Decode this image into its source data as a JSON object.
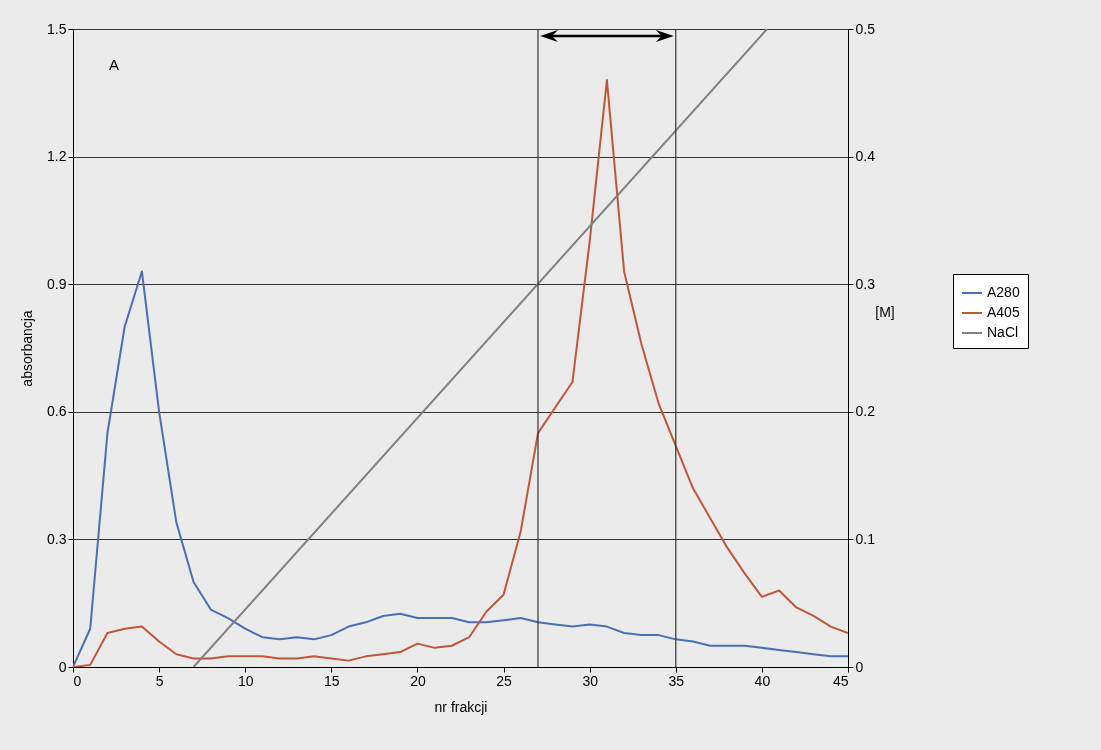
{
  "chart_data": {
    "type": "line",
    "xlabel": "nr frakcji",
    "ylabel": "absorbancja",
    "y2label": "[M]",
    "x": [
      0,
      1,
      2,
      3,
      4,
      5,
      6,
      7,
      8,
      9,
      10,
      11,
      12,
      13,
      14,
      15,
      16,
      17,
      18,
      19,
      20,
      21,
      22,
      23,
      24,
      25,
      26,
      27,
      28,
      29,
      30,
      31,
      32,
      33,
      34,
      35,
      36,
      37,
      38,
      39,
      40,
      41,
      42,
      43,
      44,
      45
    ],
    "series": [
      {
        "name": "A280",
        "color": "#4a6fb5",
        "values": [
          0.0,
          0.09,
          0.55,
          0.8,
          0.93,
          0.6,
          0.34,
          0.2,
          0.135,
          0.115,
          0.09,
          0.07,
          0.065,
          0.07,
          0.065,
          0.075,
          0.095,
          0.105,
          0.12,
          0.125,
          0.115,
          0.115,
          0.115,
          0.105,
          0.105,
          0.11,
          0.115,
          0.105,
          0.1,
          0.095,
          0.1,
          0.095,
          0.08,
          0.075,
          0.075,
          0.065,
          0.06,
          0.05,
          0.05,
          0.05,
          0.045,
          0.04,
          0.035,
          0.03,
          0.025,
          0.025
        ]
      },
      {
        "name": "A405",
        "color": "#c0573a",
        "values": [
          0.0,
          0.005,
          0.08,
          0.09,
          0.095,
          0.06,
          0.03,
          0.02,
          0.02,
          0.025,
          0.025,
          0.025,
          0.02,
          0.02,
          0.025,
          0.02,
          0.015,
          0.025,
          0.03,
          0.035,
          0.055,
          0.045,
          0.05,
          0.07,
          0.13,
          0.17,
          0.32,
          0.55,
          0.61,
          0.67,
          1.0,
          1.38,
          0.93,
          0.76,
          0.62,
          0.52,
          0.42,
          0.35,
          0.28,
          0.22,
          0.165,
          0.18,
          0.14,
          0.12,
          0.095,
          0.08
        ]
      },
      {
        "name": "NaCl",
        "color": "#808080",
        "axis": "y2",
        "x": [
          7,
          40.3
        ],
        "values": [
          0,
          0.5
        ]
      }
    ],
    "xlim": [
      0,
      45
    ],
    "xticks": [
      0,
      5,
      10,
      15,
      20,
      25,
      30,
      35,
      40,
      45
    ],
    "ylim": [
      0,
      1.5
    ],
    "yticks": [
      0,
      0.3,
      0.6,
      0.9,
      1.2,
      1.5
    ],
    "y2lim": [
      0,
      0.5
    ],
    "y2ticks": [
      0,
      0.1,
      0.2,
      0.3,
      0.4,
      0.5
    ],
    "ref_lines": [
      {
        "axis": "x",
        "value": 27,
        "color": "#333333"
      },
      {
        "axis": "x",
        "value": 35,
        "color": "#333333"
      }
    ],
    "annotations": [
      "A"
    ],
    "grid": "y",
    "legend": "right",
    "marker": "none",
    "line_style": "solid"
  }
}
